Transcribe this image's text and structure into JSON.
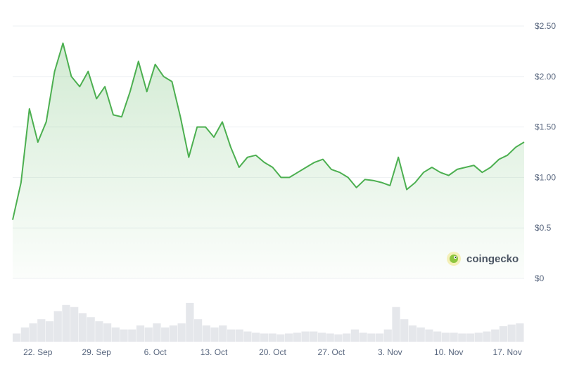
{
  "brand": {
    "name": "coingecko",
    "logo_icon": "gecko-logo-icon",
    "accent": "#8dc63f"
  },
  "chart_data": {
    "type": "line",
    "title": "",
    "xlabel": "",
    "ylabel": "",
    "ylim": [
      0,
      2.5
    ],
    "y_ticks": [
      0,
      0.5,
      1.0,
      1.5,
      2.0,
      2.5
    ],
    "y_tick_labels": [
      "$0",
      "$0.5",
      "$1.00",
      "$1.50",
      "$2.00",
      "$2.50"
    ],
    "x_range": [
      "2024-09-19",
      "2024-11-19"
    ],
    "x_ticks": [
      "2024-09-22",
      "2024-09-29",
      "2024-10-06",
      "2024-10-13",
      "2024-10-20",
      "2024-10-27",
      "2024-11-03",
      "2024-11-10",
      "2024-11-17"
    ],
    "x_tick_labels": [
      "22. Sep",
      "29. Sep",
      "6. Oct",
      "13. Oct",
      "20. Oct",
      "27. Oct",
      "3. Nov",
      "10. Nov",
      "17. Nov"
    ],
    "grid": true,
    "line_color": "#4caf50",
    "volume_color": "#e5e7eb",
    "series": [
      {
        "x": [
          "2024-09-19",
          "2024-09-20",
          "2024-09-21",
          "2024-09-22",
          "2024-09-23",
          "2024-09-24",
          "2024-09-25",
          "2024-09-26",
          "2024-09-27",
          "2024-09-28",
          "2024-09-29",
          "2024-09-30",
          "2024-10-01",
          "2024-10-02",
          "2024-10-03",
          "2024-10-04",
          "2024-10-05",
          "2024-10-06",
          "2024-10-07",
          "2024-10-08",
          "2024-10-09",
          "2024-10-10",
          "2024-10-11",
          "2024-10-12",
          "2024-10-13",
          "2024-10-14",
          "2024-10-15",
          "2024-10-16",
          "2024-10-17",
          "2024-10-18",
          "2024-10-19",
          "2024-10-20",
          "2024-10-21",
          "2024-10-22",
          "2024-10-23",
          "2024-10-24",
          "2024-10-25",
          "2024-10-26",
          "2024-10-27",
          "2024-10-28",
          "2024-10-29",
          "2024-10-30",
          "2024-10-31",
          "2024-11-01",
          "2024-11-02",
          "2024-11-03",
          "2024-11-04",
          "2024-11-05",
          "2024-11-06",
          "2024-11-07",
          "2024-11-08",
          "2024-11-09",
          "2024-11-10",
          "2024-11-11",
          "2024-11-12",
          "2024-11-13",
          "2024-11-14",
          "2024-11-15",
          "2024-11-16",
          "2024-11-17",
          "2024-11-18",
          "2024-11-19"
        ],
        "values": [
          0.58,
          0.95,
          1.68,
          1.35,
          1.55,
          2.05,
          2.33,
          2.0,
          1.9,
          2.05,
          1.78,
          1.9,
          1.62,
          1.6,
          1.85,
          2.15,
          1.85,
          2.12,
          2.0,
          1.95,
          1.6,
          1.2,
          1.5,
          1.5,
          1.4,
          1.55,
          1.3,
          1.1,
          1.2,
          1.22,
          1.15,
          1.1,
          1.0,
          1.0,
          1.05,
          1.1,
          1.15,
          1.18,
          1.08,
          1.05,
          1.0,
          0.9,
          0.98,
          0.97,
          0.95,
          0.92,
          1.2,
          0.88,
          0.95,
          1.05,
          1.1,
          1.05,
          1.02,
          1.08,
          1.1,
          1.12,
          1.05,
          1.1,
          1.18,
          1.22,
          1.3,
          1.35
        ]
      }
    ],
    "volume": [
      0.2,
      0.35,
      0.45,
      0.55,
      0.5,
      0.75,
      0.9,
      0.85,
      0.7,
      0.6,
      0.5,
      0.45,
      0.35,
      0.3,
      0.3,
      0.4,
      0.35,
      0.45,
      0.35,
      0.4,
      0.45,
      0.95,
      0.55,
      0.4,
      0.35,
      0.4,
      0.3,
      0.3,
      0.25,
      0.22,
      0.2,
      0.2,
      0.18,
      0.2,
      0.22,
      0.25,
      0.25,
      0.22,
      0.2,
      0.18,
      0.2,
      0.3,
      0.22,
      0.2,
      0.2,
      0.3,
      0.85,
      0.55,
      0.4,
      0.35,
      0.3,
      0.25,
      0.22,
      0.22,
      0.2,
      0.2,
      0.22,
      0.25,
      0.3,
      0.38,
      0.42,
      0.45
    ]
  }
}
